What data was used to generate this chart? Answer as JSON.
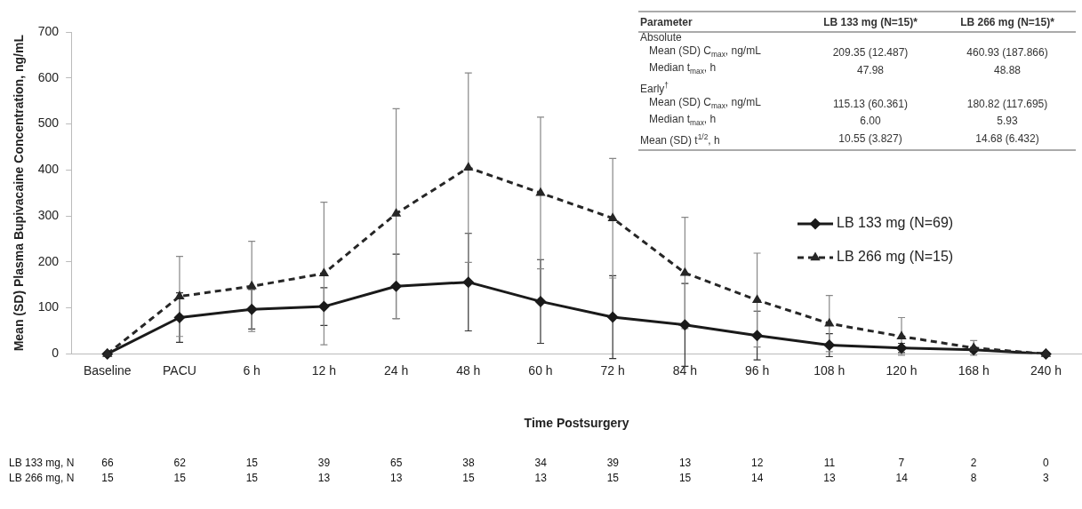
{
  "chart_data": {
    "type": "line",
    "xlabel": "Time Postsurgery",
    "ylabel": "Mean (SD) Plasma Bupivacaine Concentration, ng/mL",
    "categories": [
      "Baseline",
      "PACU",
      "6 h",
      "12 h",
      "24 h",
      "48 h",
      "60 h",
      "72 h",
      "84 h",
      "96 h",
      "108 h",
      "120 h",
      "168 h",
      "240 h"
    ],
    "series": [
      {
        "name": "LB 133 mg (N=69)",
        "color": "#1a1a1a",
        "marker": "diamond",
        "line_style": "solid",
        "values": [
          0,
          79,
          97,
          103,
          147,
          156,
          114,
          80,
          63,
          40,
          19,
          13,
          9,
          0
        ],
        "errors": [
          0,
          54,
          43,
          41,
          70,
          106,
          91,
          90,
          90,
          53,
          25,
          10,
          5,
          0
        ]
      },
      {
        "name": "LB 266 mg (N=15)",
        "color": "#262626",
        "marker": "triangle",
        "line_style": "dashed",
        "values": [
          0,
          125,
          147,
          175,
          305,
          405,
          350,
          295,
          176,
          117,
          66,
          38,
          13,
          0
        ],
        "errors": [
          0,
          87,
          98,
          155,
          228,
          206,
          165,
          130,
          121,
          102,
          61,
          41,
          16,
          0
        ]
      }
    ],
    "ylim": [
      0,
      700
    ],
    "yticks": [
      0,
      100,
      200,
      300,
      400,
      500,
      600,
      700
    ],
    "grid": false,
    "legend": "right",
    "annotations": [
      "Parameter",
      "LB 133 mg (N=15)*",
      "LB 266 mg (N=15)*",
      "Absolute",
      "Mean (SD) C$_{max}$, ng/mL",
      "209.35 (12.487)",
      "460.93 (187.866)",
      "Median t$_{max}$, h",
      "47.98",
      "48.88",
      "Early$^{†}$",
      "Mean (SD) C$_{max}$, ng/mL",
      "115.13 (60.361)",
      "180.82 (117.695)",
      "Median t$_{max}$, h",
      "6.00",
      "5.93",
      "Mean (SD) t$^{1/2}$, h",
      "10.55 (3.827)",
      "14.68 (6.432)",
      "LB 133 mg, N",
      "LB 266 mg, N",
      "66",
      "62",
      "15",
      "39",
      "65",
      "38",
      "34",
      "39",
      "13",
      "12",
      "11",
      "7",
      "2",
      "0",
      "15",
      "15",
      "15",
      "13",
      "13",
      "15",
      "13",
      "15",
      "15",
      "14",
      "13",
      "14",
      "8",
      "3"
    ]
  }
}
